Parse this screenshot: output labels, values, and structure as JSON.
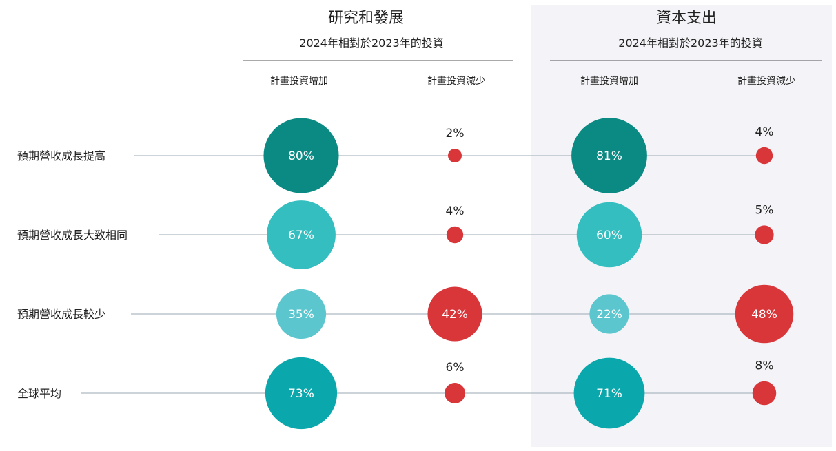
{
  "chart_data": {
    "type": "bubble-matrix",
    "groups": [
      {
        "title": "研究和發展",
        "subtitle": "2024年相對於2023年的投資",
        "columns": [
          {
            "label": "計畫投資增加",
            "values": [
              80,
              67,
              35,
              73
            ]
          },
          {
            "label": "計畫投資減少",
            "values": [
              2,
              4,
              42,
              6
            ]
          }
        ]
      },
      {
        "title": "資本支出",
        "subtitle": "2024年相對於2023年的投資",
        "columns": [
          {
            "label": "計畫投資增加",
            "values": [
              81,
              60,
              22,
              71
            ]
          },
          {
            "label": "計畫投資減少",
            "values": [
              4,
              5,
              48,
              8
            ]
          }
        ]
      }
    ],
    "rows": [
      "預期營收成長提高",
      "預期營收成長大致相同",
      "預期營收成長較少",
      "全球平均"
    ],
    "unit": "%",
    "row_colors": {
      "increase": [
        "#0b8a84",
        "#35bec0",
        "#5cc6ce",
        "#0aa8ac"
      ],
      "decrease": "#d9363a"
    },
    "highlight_background": "#f4f4f8",
    "line_color": "#9aa8b4"
  }
}
